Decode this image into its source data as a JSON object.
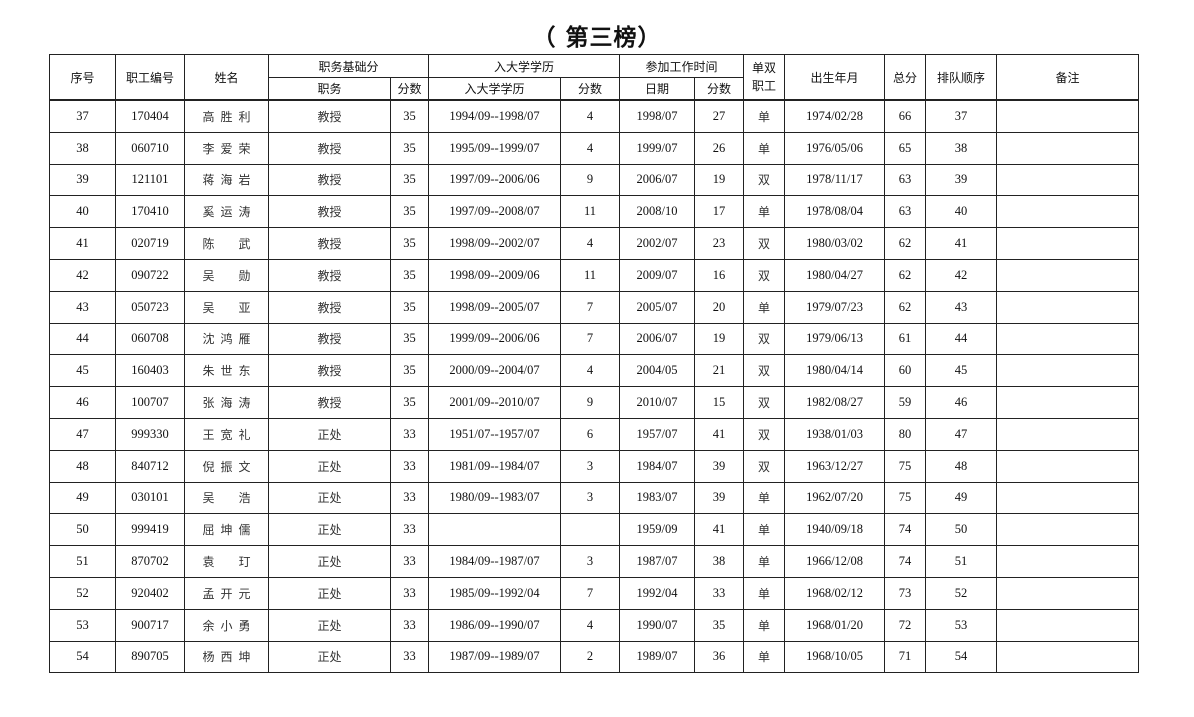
{
  "title": "（ 第三榜）",
  "headers": {
    "seq": "序号",
    "emp_id": "职工编号",
    "name": "姓名",
    "post_group": "职务基础分",
    "post": "职务",
    "post_score": "分数",
    "edu_group": "入大学学历",
    "edu": "入大学学历",
    "edu_score": "分数",
    "work_group": "参加工作时间",
    "work_date": "日期",
    "work_score": "分数",
    "dual": "单双职工",
    "birth": "出生年月",
    "total": "总分",
    "rank": "排队顺序",
    "remark": "备注"
  },
  "rows": [
    [
      "37",
      "170404",
      "高胜利",
      "教授",
      "35",
      "1994/09--1998/07",
      "4",
      "1998/07",
      "27",
      "单",
      "1974/02/28",
      "66",
      "37",
      ""
    ],
    [
      "38",
      "060710",
      "李爱荣",
      "教授",
      "35",
      "1995/09--1999/07",
      "4",
      "1999/07",
      "26",
      "单",
      "1976/05/06",
      "65",
      "38",
      ""
    ],
    [
      "39",
      "121101",
      "蒋海岩",
      "教授",
      "35",
      "1997/09--2006/06",
      "9",
      "2006/07",
      "19",
      "双",
      "1978/11/17",
      "63",
      "39",
      ""
    ],
    [
      "40",
      "170410",
      "奚运涛",
      "教授",
      "35",
      "1997/09--2008/07",
      "11",
      "2008/10",
      "17",
      "单",
      "1978/08/04",
      "63",
      "40",
      ""
    ],
    [
      "41",
      "020719",
      "陈武",
      "教授",
      "35",
      "1998/09--2002/07",
      "4",
      "2002/07",
      "23",
      "双",
      "1980/03/02",
      "62",
      "41",
      ""
    ],
    [
      "42",
      "090722",
      "吴勋",
      "教授",
      "35",
      "1998/09--2009/06",
      "11",
      "2009/07",
      "16",
      "双",
      "1980/04/27",
      "62",
      "42",
      ""
    ],
    [
      "43",
      "050723",
      "吴亚",
      "教授",
      "35",
      "1998/09--2005/07",
      "7",
      "2005/07",
      "20",
      "单",
      "1979/07/23",
      "62",
      "43",
      ""
    ],
    [
      "44",
      "060708",
      "沈鸿雁",
      "教授",
      "35",
      "1999/09--2006/06",
      "7",
      "2006/07",
      "19",
      "双",
      "1979/06/13",
      "61",
      "44",
      ""
    ],
    [
      "45",
      "160403",
      "朱世东",
      "教授",
      "35",
      "2000/09--2004/07",
      "4",
      "2004/05",
      "21",
      "双",
      "1980/04/14",
      "60",
      "45",
      ""
    ],
    [
      "46",
      "100707",
      "张海涛",
      "教授",
      "35",
      "2001/09--2010/07",
      "9",
      "2010/07",
      "15",
      "双",
      "1982/08/27",
      "59",
      "46",
      ""
    ],
    [
      "47",
      "999330",
      "王宽礼",
      "正处",
      "33",
      "1951/07--1957/07",
      "6",
      "1957/07",
      "41",
      "双",
      "1938/01/03",
      "80",
      "47",
      ""
    ],
    [
      "48",
      "840712",
      "倪振文",
      "正处",
      "33",
      "1981/09--1984/07",
      "3",
      "1984/07",
      "39",
      "双",
      "1963/12/27",
      "75",
      "48",
      ""
    ],
    [
      "49",
      "030101",
      "吴浩",
      "正处",
      "33",
      "1980/09--1983/07",
      "3",
      "1983/07",
      "39",
      "单",
      "1962/07/20",
      "75",
      "49",
      ""
    ],
    [
      "50",
      "999419",
      "屈坤儒",
      "正处",
      "33",
      "",
      "",
      "1959/09",
      "41",
      "单",
      "1940/09/18",
      "74",
      "50",
      ""
    ],
    [
      "51",
      "870702",
      "袁玎",
      "正处",
      "33",
      "1984/09--1987/07",
      "3",
      "1987/07",
      "38",
      "单",
      "1966/12/08",
      "74",
      "51",
      ""
    ],
    [
      "52",
      "920402",
      "孟开元",
      "正处",
      "33",
      "1985/09--1992/04",
      "7",
      "1992/04",
      "33",
      "单",
      "1968/02/12",
      "73",
      "52",
      ""
    ],
    [
      "53",
      "900717",
      "余小勇",
      "正处",
      "33",
      "1986/09--1990/07",
      "4",
      "1990/07",
      "35",
      "单",
      "1968/01/20",
      "72",
      "53",
      ""
    ],
    [
      "54",
      "890705",
      "杨西坤",
      "正处",
      "33",
      "1987/09--1989/07",
      "2",
      "1989/07",
      "36",
      "单",
      "1968/10/05",
      "71",
      "54",
      ""
    ]
  ]
}
